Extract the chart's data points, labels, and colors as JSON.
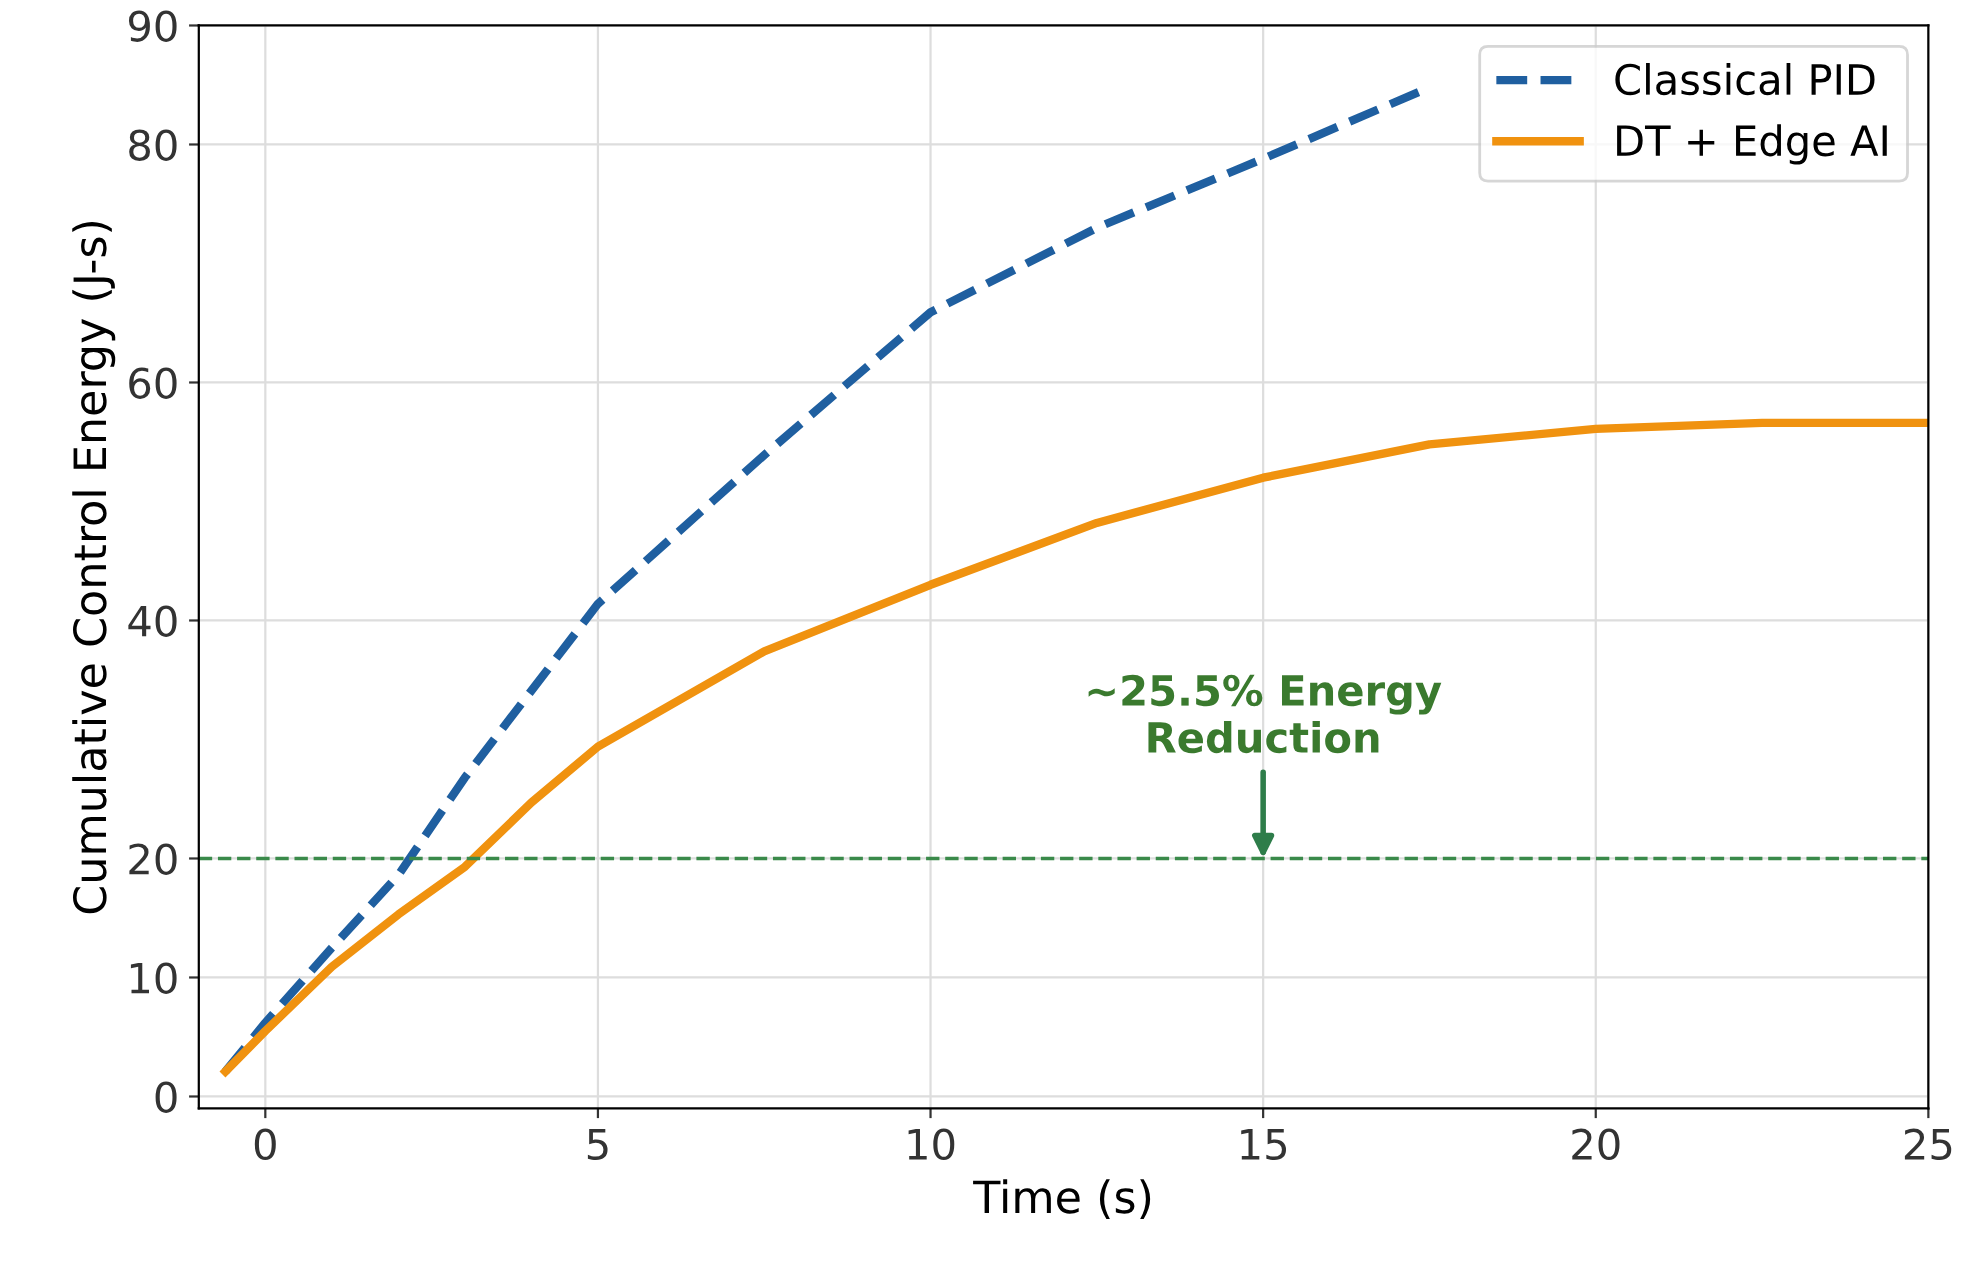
{
  "chart_data": {
    "type": "line",
    "xlabel": "Time (s)",
    "ylabel": "Cumulative Control Energy (J-s)",
    "xlim": [
      -1,
      25
    ],
    "xticks": [
      0,
      5,
      10,
      15,
      20,
      25
    ],
    "ylim": [
      -1,
      90
    ],
    "yticks": [
      0,
      10,
      20,
      40,
      60,
      80,
      90
    ],
    "grid": true,
    "legend": "top right",
    "series": [
      {
        "name": "Classical PID",
        "color": "#1f5fa0",
        "line_style": "dashed",
        "x": [
          -0.6,
          0,
          1,
          2,
          3,
          5,
          7.5,
          10,
          12.5,
          15,
          17.5
        ],
        "values": [
          2.1,
          6.2,
          12.5,
          18.6,
          26.8,
          41.4,
          53.9,
          65.9,
          73,
          78.8,
          84.8
        ]
      },
      {
        "name": "DT + Edge AI",
        "color": "#f0920f",
        "line_style": "solid",
        "x": [
          -0.6,
          0,
          1,
          2,
          3,
          4,
          5,
          7.5,
          10,
          12.5,
          15,
          17.5,
          20,
          22.5,
          25
        ],
        "values": [
          2.1,
          5.5,
          10.9,
          15.3,
          19.3,
          24.7,
          29.4,
          37.4,
          43,
          48.2,
          52,
          54.8,
          56.1,
          56.6,
          56.6
        ]
      }
    ],
    "ref_lines": [
      {
        "axis": "y",
        "value": 20,
        "color": "#3a8a4a",
        "line_style": "dashed"
      }
    ],
    "annotations": [
      {
        "text": "~25.5% Energy\nReduction",
        "x": 15,
        "y": 20
      }
    ]
  }
}
